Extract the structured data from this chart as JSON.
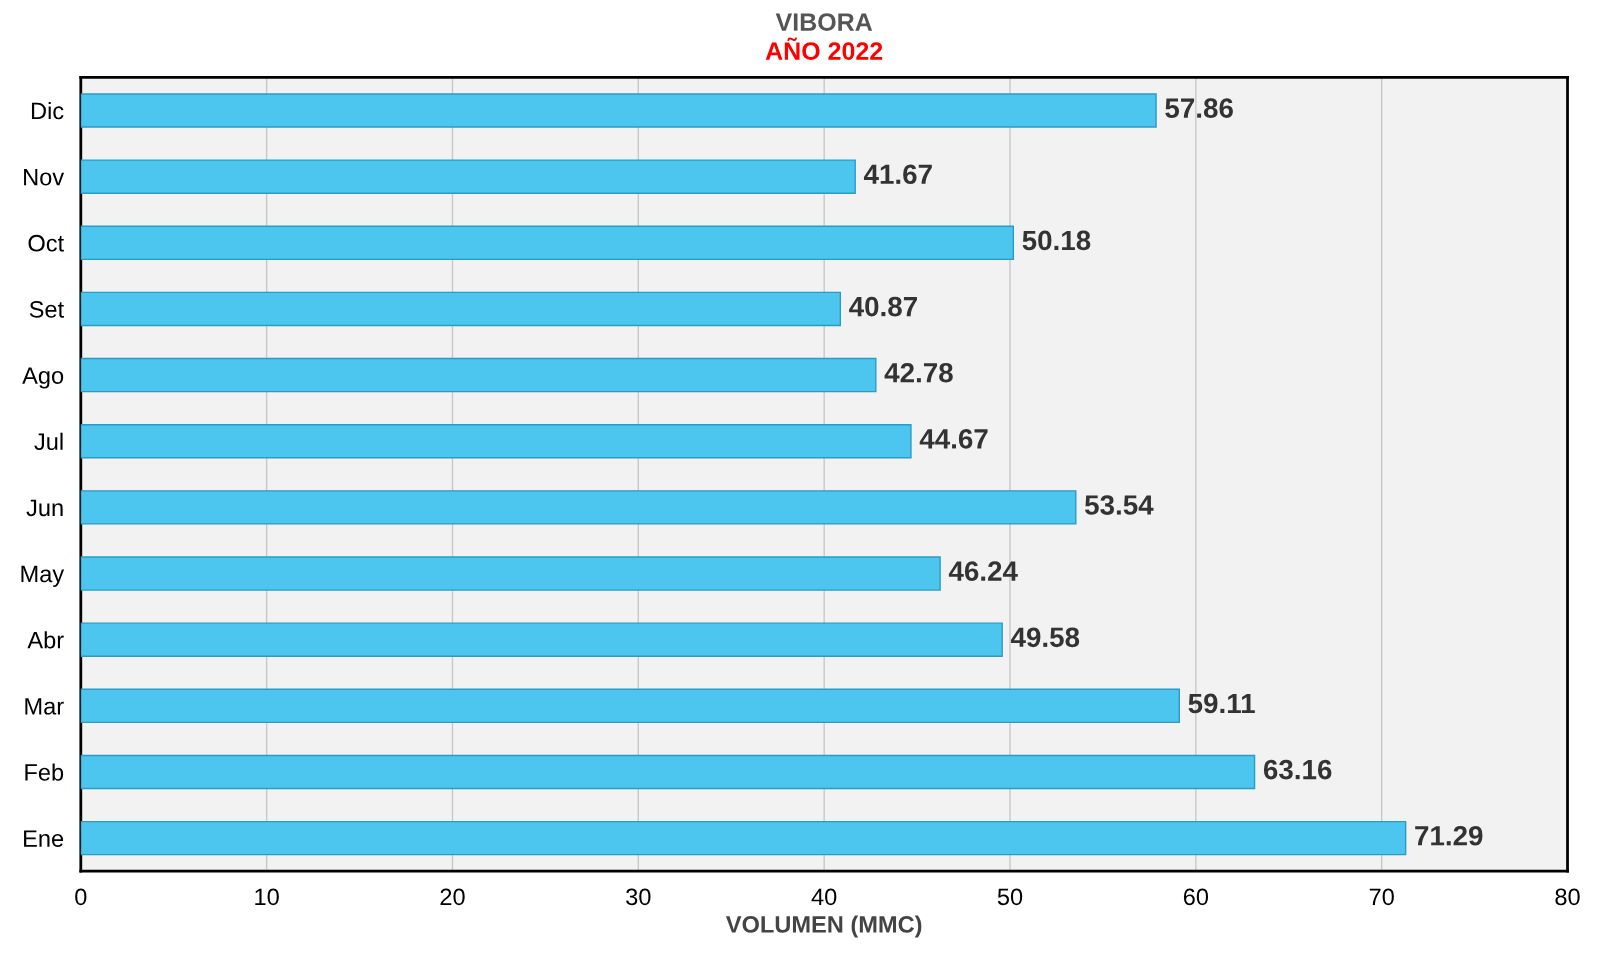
{
  "chart_data": {
    "type": "bar",
    "orientation": "horizontal",
    "title": "VIBORA",
    "subtitle": "AÑO 2022",
    "xlabel": "VOLUMEN (MMC)",
    "categories": [
      "Dic",
      "Nov",
      "Oct",
      "Set",
      "Ago",
      "Jul",
      "Jun",
      "May",
      "Abr",
      "Mar",
      "Feb",
      "Ene"
    ],
    "values": [
      57.86,
      41.67,
      50.18,
      40.87,
      42.78,
      44.67,
      53.54,
      46.24,
      49.58,
      59.11,
      63.16,
      71.29
    ],
    "color": "#4cc6ee",
    "xlim": [
      0,
      80
    ],
    "xticks": [
      0,
      10,
      20,
      30,
      40,
      50,
      60,
      70,
      80
    ],
    "grid": "x",
    "data_labels": true
  }
}
